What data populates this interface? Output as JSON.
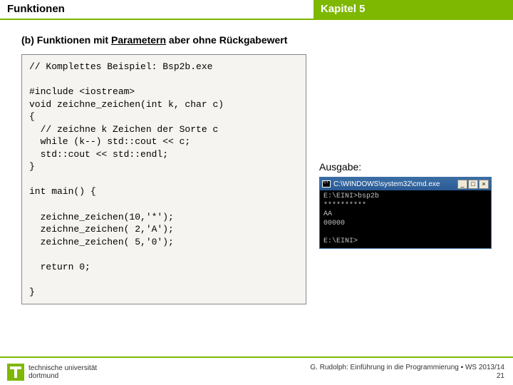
{
  "header": {
    "left": "Funktionen",
    "right": "Kapitel 5"
  },
  "subheading": {
    "prefix": "(b) Funktionen mit ",
    "underlined": "Parametern",
    "suffix": " aber ohne Rückgabewert"
  },
  "code": "// Komplettes Beispiel: Bsp2b.exe\n\n#include <iostream>\nvoid zeichne_zeichen(int k, char c)\n{\n  // zeichne k Zeichen der Sorte c\n  while (k--) std::cout << c;\n  std::cout << std::endl;\n}\n\nint main() {\n\n  zeichne_zeichen(10,'*');\n  zeichne_zeichen( 2,'A');\n  zeichne_zeichen( 5,'0');\n\n  return 0;\n\n}",
  "output": {
    "label": "Ausgabe:",
    "window_title": "C:\\WINDOWS\\system32\\cmd.exe",
    "buttons": {
      "min": "_",
      "max": "□",
      "close": "×"
    },
    "console_text": "E:\\EINI>bsp2b\n**********\nAA\n00000\n\nE:\\EINI>"
  },
  "footer": {
    "uni_line1": "technische universität",
    "uni_line2": "dortmund",
    "credit": "G. Rudolph: Einführung in die Programmierung ▪ WS 2013/14",
    "page": "21"
  },
  "colors": {
    "accent": "#7eb800",
    "code_bg": "#f6f4f0",
    "console_bg": "#000000",
    "console_fg": "#c0c0c0"
  }
}
